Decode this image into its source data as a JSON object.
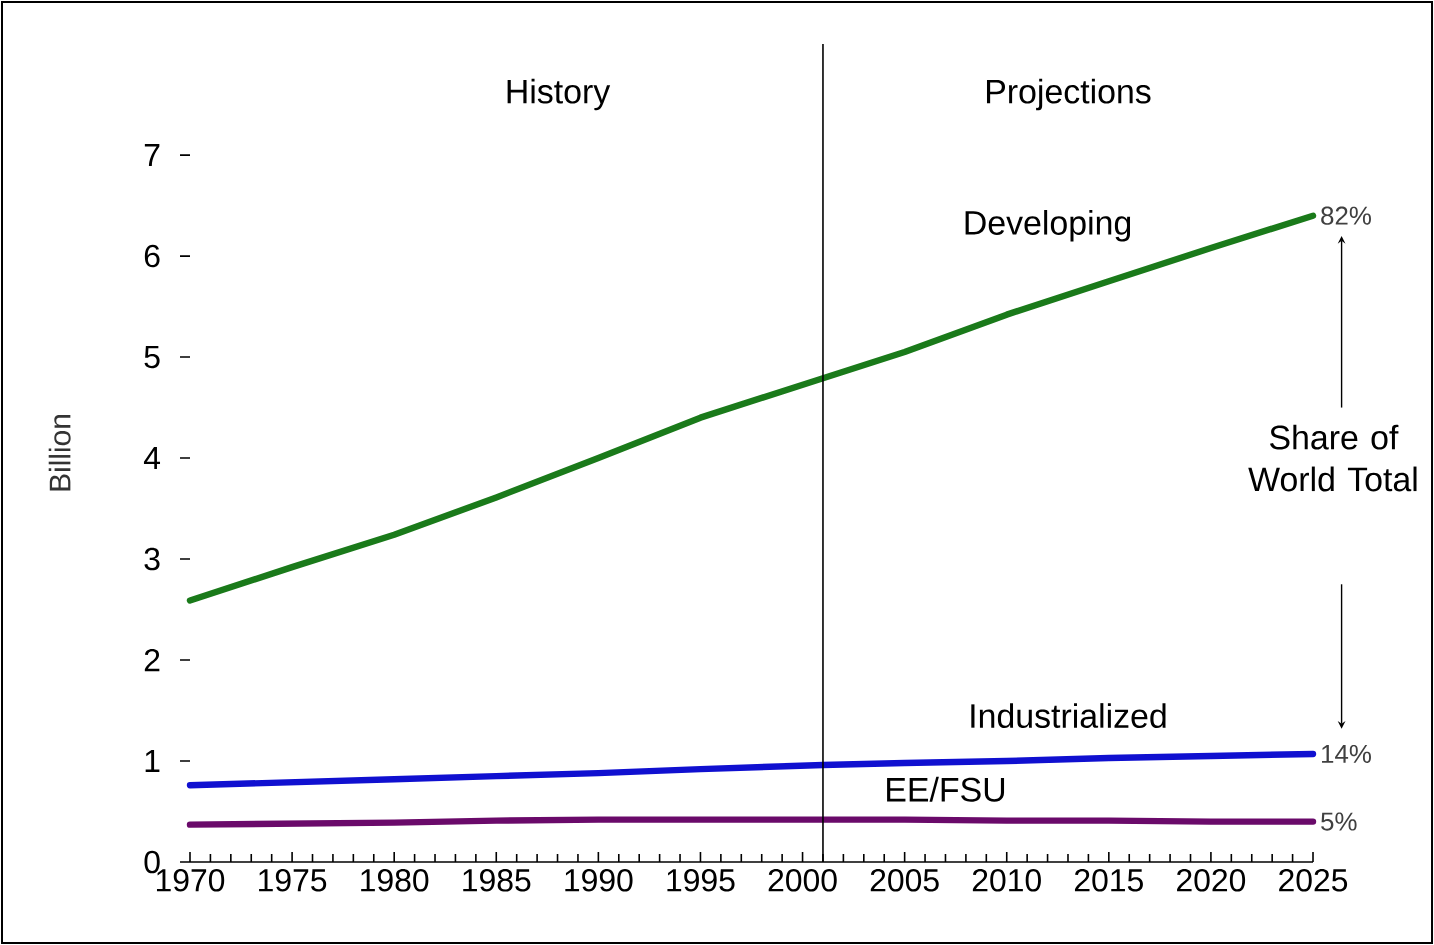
{
  "chart_data": {
    "type": "line",
    "ylabel": "Billion",
    "x": [
      1970,
      1975,
      1980,
      1985,
      1990,
      1995,
      2001,
      2005,
      2010,
      2015,
      2020,
      2025
    ],
    "series": [
      {
        "name": "Developing",
        "color": "#1a7a1a",
        "values": [
          2.59,
          2.92,
          3.24,
          3.61,
          4.0,
          4.4,
          4.79,
          5.05,
          5.42,
          5.75,
          6.08,
          6.4
        ]
      },
      {
        "name": "Industrialized",
        "color": "#1010d0",
        "values": [
          0.76,
          0.79,
          0.82,
          0.85,
          0.88,
          0.92,
          0.96,
          0.98,
          1.0,
          1.03,
          1.05,
          1.07
        ]
      },
      {
        "name": "EE/FSU",
        "color": "#6a0a6a",
        "values": [
          0.37,
          0.38,
          0.39,
          0.41,
          0.42,
          0.42,
          0.42,
          0.42,
          0.41,
          0.41,
          0.4,
          0.4
        ]
      }
    ],
    "xlim": [
      1970,
      2025
    ],
    "xticks": [
      1970,
      1975,
      1980,
      1985,
      1990,
      1995,
      2000,
      2005,
      2010,
      2015,
      2020,
      2025
    ],
    "ylim": [
      0,
      8.1
    ],
    "yticks": [
      0,
      1,
      2,
      3,
      4,
      5,
      6,
      7
    ],
    "ref_lines": [
      {
        "axis": "x",
        "value": 2001,
        "color": "#000000"
      }
    ],
    "annotations": [
      "History",
      "Projections",
      "82%",
      "14%",
      "5%",
      "Share of World Total"
    ]
  }
}
